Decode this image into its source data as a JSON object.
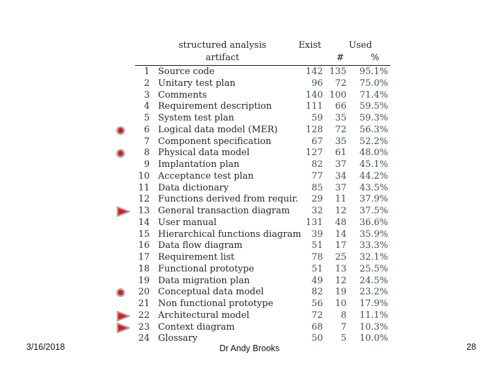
{
  "table": {
    "header": {
      "artifact_line1": "structured analysis",
      "artifact_line2": "artifact",
      "exist": "Exist",
      "used": "Used",
      "used_count_symbol": "#",
      "used_pct_symbol": "%"
    },
    "rows": [
      {
        "n": "1",
        "name": "Source code",
        "exist": "142",
        "used": "135",
        "pct": "95.1%",
        "marker": ""
      },
      {
        "n": "2",
        "name": "Unitary test plan",
        "exist": "96",
        "used": "72",
        "pct": "75.0%",
        "marker": ""
      },
      {
        "n": "3",
        "name": "Comments",
        "exist": "140",
        "used": "100",
        "pct": "71.4%",
        "marker": ""
      },
      {
        "n": "4",
        "name": "Requirement description",
        "exist": "111",
        "used": "66",
        "pct": "59.5%",
        "marker": ""
      },
      {
        "n": "5",
        "name": "System test plan",
        "exist": "59",
        "used": "35",
        "pct": "59.3%",
        "marker": ""
      },
      {
        "n": "6",
        "name": "Logical data model (MER)",
        "exist": "128",
        "used": "72",
        "pct": "56.3%",
        "marker": "red-circle"
      },
      {
        "n": "7",
        "name": "Component specification",
        "exist": "67",
        "used": "35",
        "pct": "52.2%",
        "marker": ""
      },
      {
        "n": "8",
        "name": "Physical data model",
        "exist": "127",
        "used": "61",
        "pct": "48.0%",
        "marker": "red-circle"
      },
      {
        "n": "9",
        "name": "Implantation plan",
        "exist": "82",
        "used": "37",
        "pct": "45.1%",
        "marker": ""
      },
      {
        "n": "10",
        "name": "Acceptance test plan",
        "exist": "77",
        "used": "34",
        "pct": "44.2%",
        "marker": ""
      },
      {
        "n": "11",
        "name": "Data dictionary",
        "exist": "85",
        "used": "37",
        "pct": "43.5%",
        "marker": ""
      },
      {
        "n": "12",
        "name": "Functions derived from requir.",
        "exist": "29",
        "used": "11",
        "pct": "37.9%",
        "marker": ""
      },
      {
        "n": "13",
        "name": "General transaction diagram",
        "exist": "32",
        "used": "12",
        "pct": "37.5%",
        "marker": "red-triangle"
      },
      {
        "n": "14",
        "name": "User manual",
        "exist": "131",
        "used": "48",
        "pct": "36.6%",
        "marker": ""
      },
      {
        "n": "15",
        "name": "Hierarchical functions diagram",
        "exist": "39",
        "used": "14",
        "pct": "35.9%",
        "marker": ""
      },
      {
        "n": "16",
        "name": "Data flow diagram",
        "exist": "51",
        "used": "17",
        "pct": "33.3%",
        "marker": ""
      },
      {
        "n": "17",
        "name": "Requirement list",
        "exist": "78",
        "used": "25",
        "pct": "32.1%",
        "marker": ""
      },
      {
        "n": "18",
        "name": "Functional prototype",
        "exist": "51",
        "used": "13",
        "pct": "25.5%",
        "marker": ""
      },
      {
        "n": "19",
        "name": "Data migration plan",
        "exist": "49",
        "used": "12",
        "pct": "24.5%",
        "marker": ""
      },
      {
        "n": "20",
        "name": "Conceptual data model",
        "exist": "82",
        "used": "19",
        "pct": "23.2%",
        "marker": "red-circle"
      },
      {
        "n": "21",
        "name": "Non functional prototype",
        "exist": "56",
        "used": "10",
        "pct": "17.9%",
        "marker": ""
      },
      {
        "n": "22",
        "name": "Architectural model",
        "exist": "72",
        "used": "8",
        "pct": "11.1%",
        "marker": "red-triangle"
      },
      {
        "n": "23",
        "name": "Context diagram",
        "exist": "68",
        "used": "7",
        "pct": "10.3%",
        "marker": "red-triangle"
      },
      {
        "n": "24",
        "name": "Glossary",
        "exist": "50",
        "used": "5",
        "pct": "10.0%",
        "marker": ""
      }
    ]
  },
  "footer": {
    "date": "3/16/2018",
    "author": "Dr Andy Brooks",
    "page_number": "28"
  },
  "colors": {
    "marker_red": "#e8141c",
    "marker_outline": "#a9a9a9",
    "table_text": "#242424",
    "table_numbers": "#3f4f4b"
  }
}
